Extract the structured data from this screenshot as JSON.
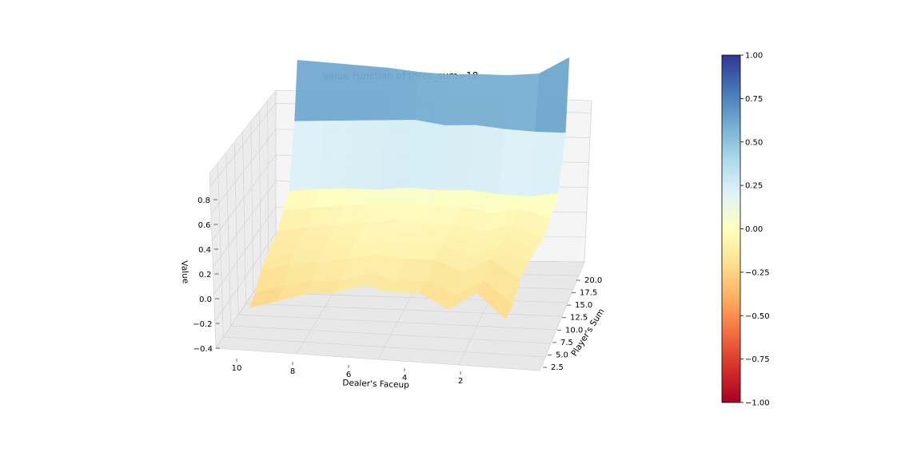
{
  "chart_data": {
    "type": "surface",
    "title": "Value Function of thres_sum=18",
    "xlabel": "Dealer's Faceup",
    "ylabel": "Player's Sum",
    "zlabel": "Value",
    "colormap": "RdYlBu",
    "x": [
      1,
      2,
      3,
      4,
      5,
      6,
      7,
      8,
      9,
      10
    ],
    "y": [
      4,
      6,
      8,
      10,
      12,
      14,
      16,
      18,
      20,
      21
    ],
    "z": [
      [
        -0.28,
        -0.15,
        -0.24,
        -0.16,
        -0.16,
        -0.13,
        -0.17,
        -0.18,
        -0.22,
        -0.26
      ],
      [
        -0.26,
        -0.14,
        -0.22,
        -0.15,
        -0.15,
        -0.12,
        -0.16,
        -0.17,
        -0.2,
        -0.24
      ],
      [
        -0.18,
        -0.08,
        -0.15,
        -0.09,
        -0.09,
        -0.07,
        -0.1,
        -0.12,
        -0.14,
        -0.18
      ],
      [
        -0.15,
        -0.06,
        -0.12,
        -0.07,
        -0.07,
        -0.05,
        -0.08,
        -0.1,
        -0.12,
        -0.16
      ],
      [
        -0.13,
        -0.05,
        -0.1,
        -0.06,
        -0.06,
        -0.04,
        -0.07,
        -0.09,
        -0.11,
        -0.14
      ],
      [
        -0.12,
        -0.04,
        -0.09,
        -0.05,
        -0.05,
        -0.03,
        -0.06,
        -0.08,
        -0.1,
        -0.13
      ],
      [
        -0.05,
        0.0,
        -0.03,
        0.0,
        0.0,
        0.02,
        0.0,
        -0.02,
        -0.04,
        -0.06
      ],
      [
        0.05,
        0.02,
        0.03,
        0.05,
        0.04,
        0.05,
        0.03,
        0.03,
        0.02,
        0.0
      ],
      [
        0.4,
        0.4,
        0.41,
        0.43,
        0.42,
        0.45,
        0.44,
        0.43,
        0.42,
        0.41
      ],
      [
        0.9,
        0.78,
        0.76,
        0.76,
        0.75,
        0.76,
        0.78,
        0.79,
        0.8,
        0.81
      ]
    ],
    "x_ticks": [
      "2",
      "4",
      "6",
      "8",
      "10"
    ],
    "y_ticks": [
      "2.5",
      "5.0",
      "7.5",
      "10.0",
      "12.5",
      "15.0",
      "17.5",
      "20.0"
    ],
    "z_ticks": [
      "−0.4",
      "−0.2",
      "0.0",
      "0.2",
      "0.4",
      "0.6",
      "0.8"
    ],
    "zlim": [
      -0.4,
      0.9
    ],
    "colorbar": {
      "range": [
        -1.0,
        1.0
      ],
      "ticks": [
        "1.00",
        "0.75",
        "0.50",
        "0.25",
        "0.00",
        "−0.25",
        "−0.50",
        "−0.75",
        "−1.00"
      ]
    },
    "grid": true
  }
}
